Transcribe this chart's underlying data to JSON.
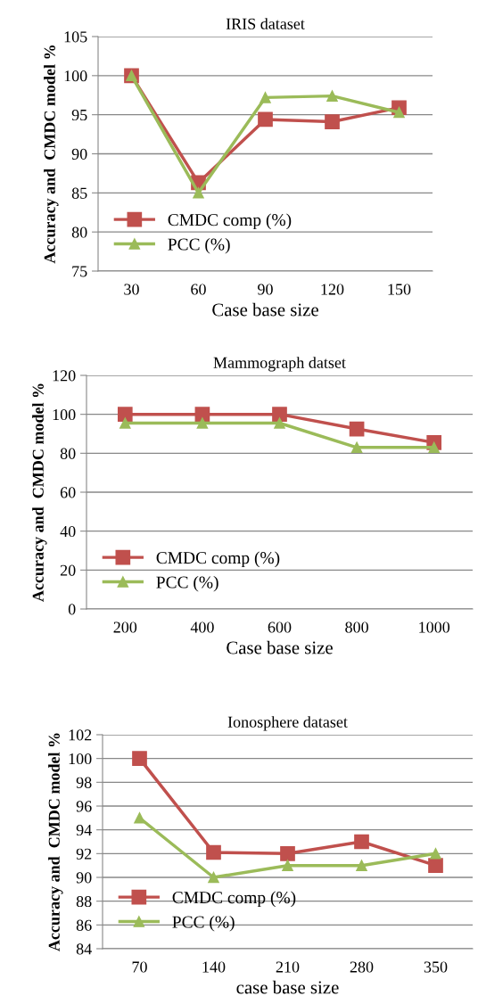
{
  "chart_data": [
    {
      "type": "line",
      "title": "IRIS dataset",
      "xlabel": "Case base size",
      "ylabel": "Accuracy and  CMDC model %",
      "categories": [
        "30",
        "60",
        "90",
        "120",
        "150"
      ],
      "series": [
        {
          "name": "CMDC comp (%)",
          "color": "#c0504d",
          "marker": "square",
          "values": [
            100,
            86.3,
            94.4,
            94.1,
            95.9
          ]
        },
        {
          "name": "PCC (%)",
          "color": "#9bbb59",
          "marker": "triangle",
          "values": [
            100,
            85,
            97.2,
            97.4,
            95.3
          ]
        }
      ],
      "ylim": [
        75,
        105
      ],
      "yticks": [
        75,
        80,
        85,
        90,
        95,
        100,
        105
      ],
      "grid": "y",
      "legend": "bottom left"
    },
    {
      "type": "line",
      "title": "Mammograph datset",
      "xlabel": "Case base size",
      "ylabel": "Accuracy and  CMDC model %",
      "categories": [
        "200",
        "400",
        "600",
        "800",
        "1000"
      ],
      "series": [
        {
          "name": "CMDC comp (%)",
          "color": "#c0504d",
          "marker": "square",
          "values": [
            100,
            100,
            100,
            92.5,
            85.5
          ]
        },
        {
          "name": "PCC (%)",
          "color": "#9bbb59",
          "marker": "triangle",
          "values": [
            95.5,
            95.5,
            95.5,
            83,
            83
          ]
        }
      ],
      "ylim": [
        0,
        120
      ],
      "yticks": [
        0,
        20,
        40,
        60,
        80,
        100,
        120
      ],
      "grid": "y",
      "legend": "bottom left"
    },
    {
      "type": "line",
      "title": "Ionosphere dataset",
      "xlabel": "case base size",
      "ylabel": "Accuracy and  CMDC model %",
      "categories": [
        "70",
        "140",
        "210",
        "280",
        "350"
      ],
      "series": [
        {
          "name": "CMDC comp (%)",
          "color": "#c0504d",
          "marker": "square",
          "values": [
            100,
            92.1,
            92,
            93,
            91
          ]
        },
        {
          "name": "PCC (%)",
          "color": "#9bbb59",
          "marker": "triangle",
          "values": [
            95,
            90,
            91,
            91,
            92
          ]
        }
      ],
      "ylim": [
        84,
        102
      ],
      "yticks": [
        84,
        86,
        88,
        90,
        92,
        94,
        96,
        98,
        100,
        102
      ],
      "grid": "y",
      "legend": "bottom left"
    }
  ]
}
